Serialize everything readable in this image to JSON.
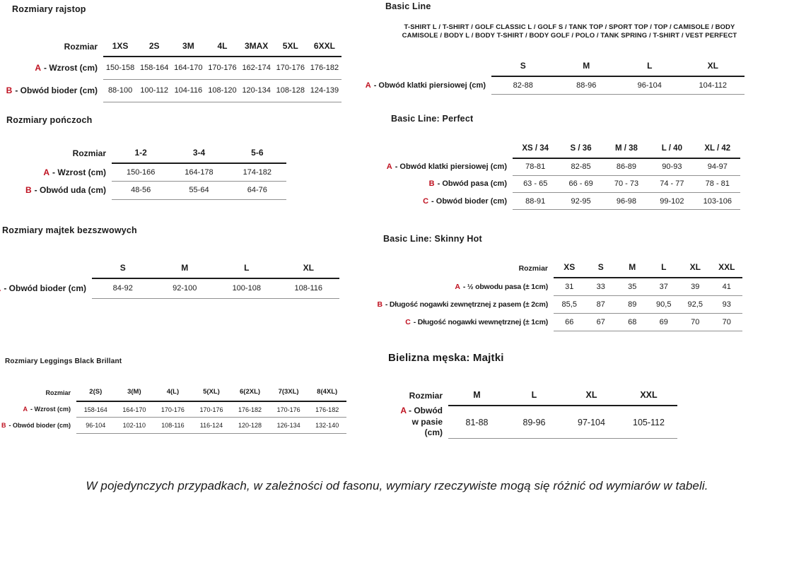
{
  "colors": {
    "accent_red": "#bf1120",
    "text": "#1a1a1a",
    "header_line": "#1b1b1b",
    "row_line": "#909090"
  },
  "sections": {
    "rajstopy": {
      "title": "Rozmiary rajstop",
      "table": {
        "size_label": "Rozmiar",
        "sizes": [
          "1XS",
          "2S",
          "3M",
          "4L",
          "3MAX",
          "5XL",
          "6XXL"
        ],
        "rows": [
          {
            "letter": "A",
            "label": "- Wzrost (cm)",
            "values": [
              "150-158",
              "158-164",
              "164-170",
              "170-176",
              "162-174",
              "170-176",
              "176-182"
            ]
          },
          {
            "letter": "B",
            "label": "- Obwód bioder (cm)",
            "values": [
              "88-100",
              "100-112",
              "104-116",
              "108-120",
              "120-134",
              "108-128",
              "124-139"
            ]
          }
        ]
      }
    },
    "ponczochy": {
      "title": "Rozmiary pończoch",
      "table": {
        "size_label": "Rozmiar",
        "sizes": [
          "1-2",
          "3-4",
          "5-6"
        ],
        "rows": [
          {
            "letter": "A",
            "label": "- Wzrost (cm)",
            "values": [
              "150-166",
              "164-178",
              "174-182"
            ]
          },
          {
            "letter": "B",
            "label": "- Obwód uda (cm)",
            "values": [
              "48-56",
              "55-64",
              "64-76"
            ]
          }
        ]
      }
    },
    "majtki_bezszwowe": {
      "title": "Rozmiary majtek bezszwowych",
      "table": {
        "size_label": "",
        "sizes": [
          "S",
          "M",
          "L",
          "XL"
        ],
        "rows": [
          {
            "letter": "A",
            "label": "- Obwód bioder (cm)",
            "values": [
              "84-92",
              "92-100",
              "100-108",
              "108-116"
            ]
          }
        ]
      }
    },
    "leggings": {
      "title": "Rozmiary Leggings Black Brillant",
      "table": {
        "size_label": "Rozmiar",
        "sizes": [
          "2(S)",
          "3(M)",
          "4(L)",
          "5(XL)",
          "6(2XL)",
          "7(3XL)",
          "8(4XL)"
        ],
        "rows": [
          {
            "letter": "A",
            "label": "- Wzrost (cm)",
            "values": [
              "158-164",
              "164-170",
              "170-176",
              "170-176",
              "176-182",
              "170-176",
              "176-182"
            ]
          },
          {
            "letter": "B",
            "label": "- Obwód bioder (cm)",
            "values": [
              "96-104",
              "102-110",
              "108-116",
              "116-124",
              "120-128",
              "126-134",
              "132-140"
            ]
          }
        ]
      }
    },
    "basic_line": {
      "title": "Basic Line",
      "products": "T-SHIRT L / T-SHIRT / GOLF CLASSIC L / GOLF S / TANK TOP / SPORT TOP / TOP / CAMISOLE / BODY CAMISOLE / BODY L / BODY T-SHIRT / BODY GOLF / POLO / TANK SPRING / T-SHIRT / VEST PERFECT",
      "table": {
        "size_label": "",
        "sizes": [
          "S",
          "M",
          "L",
          "XL"
        ],
        "rows": [
          {
            "letter": "A",
            "label": "- Obwód klatki piersiowej (cm)",
            "values": [
              "82-88",
              "88-96",
              "96-104",
              "104-112"
            ]
          }
        ]
      }
    },
    "basic_line_perfect": {
      "title": "Basic Line: Perfect",
      "table": {
        "size_label": "",
        "sizes": [
          "XS / 34",
          "S / 36",
          "M / 38",
          "L / 40",
          "XL / 42"
        ],
        "rows": [
          {
            "letter": "A",
            "label": "- Obwód klatki piersiowej (cm)",
            "values": [
              "78-81",
              "82-85",
              "86-89",
              "90-93",
              "94-97"
            ]
          },
          {
            "letter": "B",
            "label": "- Obwód pasa (cm)",
            "values": [
              "63 - 65",
              "66 - 69",
              "70 - 73",
              "74 - 77",
              "78 - 81"
            ]
          },
          {
            "letter": "C",
            "label": "- Obwód bioder (cm)",
            "values": [
              "88-91",
              "92-95",
              "96-98",
              "99-102",
              "103-106"
            ]
          }
        ]
      }
    },
    "skinny_hot": {
      "title": "Basic Line: Skinny Hot",
      "table": {
        "size_label": "Rozmiar",
        "sizes": [
          "XS",
          "S",
          "M",
          "L",
          "XL",
          "XXL"
        ],
        "rows": [
          {
            "letter": "A",
            "label": "- ½ obwodu pasa (± 1cm)",
            "values": [
              "31",
              "33",
              "35",
              "37",
              "39",
              "41"
            ]
          },
          {
            "letter": "B",
            "label": "- Długość nogawki zewnętrznej z pasem (± 2cm)",
            "values": [
              "85,5",
              "87",
              "89",
              "90,5",
              "92,5",
              "93"
            ]
          },
          {
            "letter": "C",
            "label": "- Długość nogawki wewnętrznej (± 1cm)",
            "values": [
              "66",
              "67",
              "68",
              "69",
              "70",
              "70"
            ]
          }
        ]
      }
    },
    "bielizna_meska": {
      "title": "Bielizna męska: Majtki",
      "table": {
        "size_label": "Rozmiar",
        "sizes": [
          "M",
          "L",
          "XL",
          "XXL"
        ],
        "rows": [
          {
            "letter": "A",
            "label": "- Obwód w pasie (cm)",
            "values": [
              "81-88",
              "89-96",
              "97-104",
              "105-112"
            ]
          }
        ]
      }
    }
  },
  "footer_note": "W pojedynczych przypadkach, w zależności od fasonu, wymiary rzeczywiste mogą się różnić od wymiarów w tabeli."
}
